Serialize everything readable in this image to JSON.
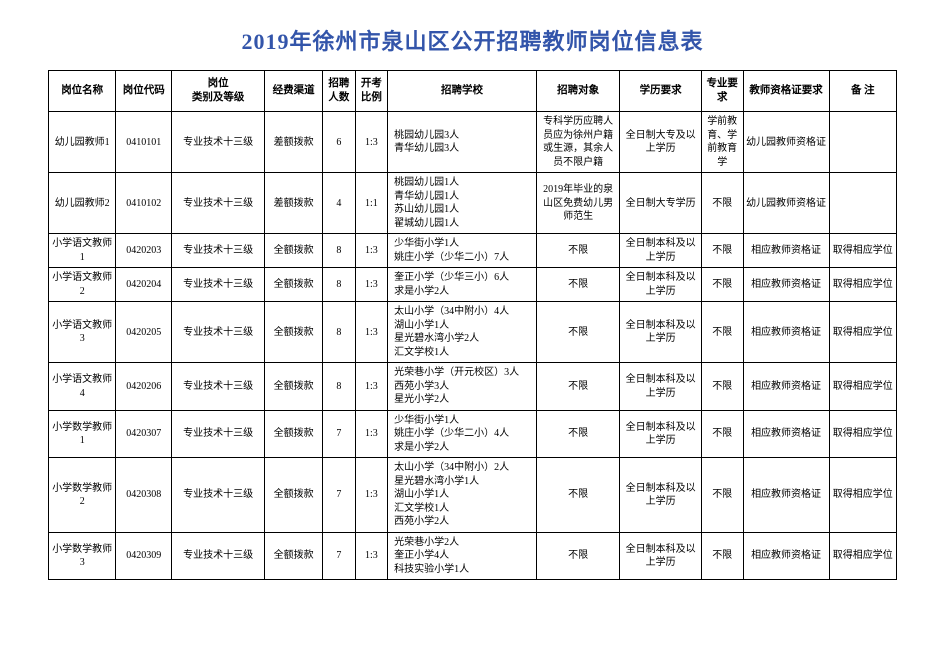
{
  "title": "2019年徐州市泉山区公开招聘教师岗位信息表",
  "columns": [
    "岗位名称",
    "岗位代码",
    "岗位\n类别及等级",
    "经费渠道",
    "招聘\n人数",
    "开考\n比例",
    "招聘学校",
    "招聘对象",
    "学历要求",
    "专业要\n求",
    "教师资格证要求",
    "备  注"
  ],
  "rows": [
    {
      "name": "幼儿园教师1",
      "code": "0410101",
      "class": "专业技术十三级",
      "fund": "差额拨款",
      "count": "6",
      "ratio": "1:3",
      "school": "桃园幼儿园3人\n青华幼儿园3人",
      "target": "专科学历应聘人员应为徐州户籍或生源，其余人员不限户籍",
      "edu": "全日制大专及以上学历",
      "major": "学前教育、学前教育学",
      "cert": "幼儿园教师资格证",
      "remark": ""
    },
    {
      "name": "幼儿园教师2",
      "code": "0410102",
      "class": "专业技术十三级",
      "fund": "差额拨款",
      "count": "4",
      "ratio": "1:1",
      "school": "桃园幼儿园1人\n青华幼儿园1人\n苏山幼儿园1人\n翟城幼儿园1人",
      "target": "2019年毕业的泉山区免费幼儿男师范生",
      "edu": "全日制大专学历",
      "major": "不限",
      "cert": "幼儿园教师资格证",
      "remark": ""
    },
    {
      "name": "小学语文教师1",
      "code": "0420203",
      "class": "专业技术十三级",
      "fund": "全额拨款",
      "count": "8",
      "ratio": "1:3",
      "school": "少华街小学1人\n姚庄小学（少华二小）7人",
      "target": "不限",
      "edu": "全日制本科及以上学历",
      "major": "不限",
      "cert": "相应教师资格证",
      "remark": "取得相应学位"
    },
    {
      "name": "小学语文教师2",
      "code": "0420204",
      "class": "专业技术十三级",
      "fund": "全额拨款",
      "count": "8",
      "ratio": "1:3",
      "school": "奎正小学（少华三小）6人\n求是小学2人",
      "target": "不限",
      "edu": "全日制本科及以上学历",
      "major": "不限",
      "cert": "相应教师资格证",
      "remark": "取得相应学位"
    },
    {
      "name": "小学语文教师3",
      "code": "0420205",
      "class": "专业技术十三级",
      "fund": "全额拨款",
      "count": "8",
      "ratio": "1:3",
      "school": "太山小学（34中附小）4人\n湖山小学1人\n星光碧水湾小学2人\n汇文学校1人",
      "target": "不限",
      "edu": "全日制本科及以上学历",
      "major": "不限",
      "cert": "相应教师资格证",
      "remark": "取得相应学位"
    },
    {
      "name": "小学语文教师4",
      "code": "0420206",
      "class": "专业技术十三级",
      "fund": "全额拨款",
      "count": "8",
      "ratio": "1:3",
      "school": "光荣巷小学（开元校区）3人\n西苑小学3人\n星光小学2人",
      "target": "不限",
      "edu": "全日制本科及以上学历",
      "major": "不限",
      "cert": "相应教师资格证",
      "remark": "取得相应学位"
    },
    {
      "name": "小学数学教师1",
      "code": "0420307",
      "class": "专业技术十三级",
      "fund": "全额拨款",
      "count": "7",
      "ratio": "1:3",
      "school": "少华街小学1人\n姚庄小学（少华二小）4人\n求是小学2人",
      "target": "不限",
      "edu": "全日制本科及以上学历",
      "major": "不限",
      "cert": "相应教师资格证",
      "remark": "取得相应学位"
    },
    {
      "name": "小学数学教师2",
      "code": "0420308",
      "class": "专业技术十三级",
      "fund": "全额拨款",
      "count": "7",
      "ratio": "1:3",
      "school": "太山小学（34中附小）2人\n星光碧水湾小学1人\n湖山小学1人\n汇文学校1人\n西苑小学2人",
      "target": "不限",
      "edu": "全日制本科及以上学历",
      "major": "不限",
      "cert": "相应教师资格证",
      "remark": "取得相应学位"
    },
    {
      "name": "小学数学教师3",
      "code": "0420309",
      "class": "专业技术十三级",
      "fund": "全额拨款",
      "count": "7",
      "ratio": "1:3",
      "school": "光荣巷小学2人\n奎正小学4人\n科技实验小学1人",
      "target": "不限",
      "edu": "全日制本科及以上学历",
      "major": "不限",
      "cert": "相应教师资格证",
      "remark": "取得相应学位"
    }
  ]
}
